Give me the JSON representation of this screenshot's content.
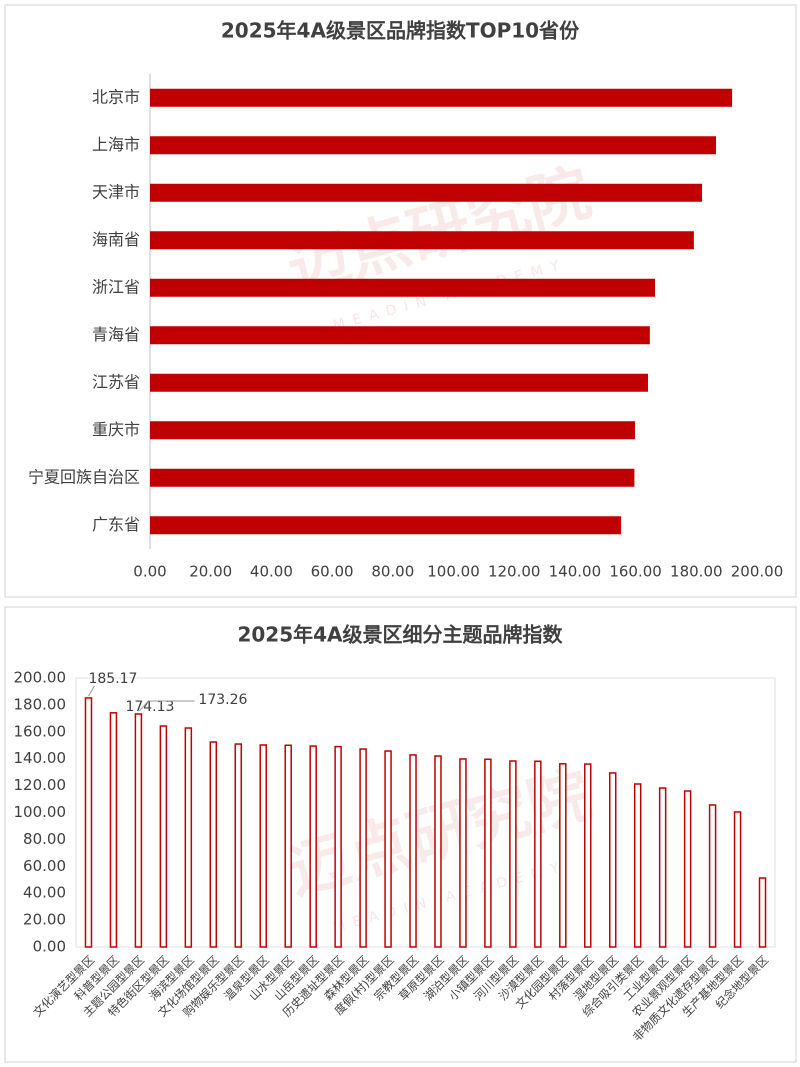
{
  "chart_data": [
    {
      "type": "hbar",
      "title": "2025年4A级景区品牌指数TOP10省份",
      "watermark": "迈点研究院",
      "watermark_sub": "MEADIN ACADEMY",
      "categories": [
        "北京市",
        "上海市",
        "天津市",
        "海南省",
        "浙江省",
        "青海省",
        "江苏省",
        "重庆市",
        "宁夏回族自治区",
        "广东省"
      ],
      "values": [
        191.8,
        186.5,
        181.9,
        179.2,
        166.4,
        164.7,
        164.1,
        159.8,
        159.6,
        155.2
      ],
      "color": "#c00000",
      "xlim": [
        0,
        200
      ],
      "xticks": [
        {
          "value": 0,
          "label": "0.00"
        },
        {
          "value": 20,
          "label": "20.00"
        },
        {
          "value": 40,
          "label": "40.00"
        },
        {
          "value": 60,
          "label": "60.00"
        },
        {
          "value": 80,
          "label": "80.00"
        },
        {
          "value": 100,
          "label": "100.00"
        },
        {
          "value": 120,
          "label": "120.00"
        },
        {
          "value": 140,
          "label": "140.00"
        },
        {
          "value": 160,
          "label": "160.00"
        },
        {
          "value": 180,
          "label": "180.00"
        },
        {
          "value": 200,
          "label": "200.00"
        }
      ]
    },
    {
      "type": "bar",
      "title": "2025年4A级景区细分主题品牌指数",
      "watermark": "迈点研究院",
      "watermark_sub": "MEADIN ACADEMY",
      "categories": [
        "文化演艺型景区",
        "科普型景区",
        "主题公园型景区",
        "特色街区型景区",
        "海滨型景区",
        "文化场馆型景区",
        "购物娱乐型景区",
        "温泉型景区",
        "山水型景区",
        "山岳型景区",
        "历史遗址型景区",
        "森林型景区",
        "度假(村)型景区",
        "宗教型景区",
        "草原型景区",
        "湖泊型景区",
        "小镇型景区",
        "河川型景区",
        "沙漠型景区",
        "文化园型景区",
        "村落型景区",
        "湿地型景区",
        "综合吸引类景区",
        "工业型景区",
        "农业景观型景区",
        "非物质文化遗存型景区",
        "生产基地型景区",
        "纪念地型景区"
      ],
      "values": [
        185.17,
        174.13,
        173.26,
        164.3,
        162.8,
        152.4,
        150.9,
        150.2,
        150.0,
        149.4,
        149.0,
        147.2,
        145.7,
        142.8,
        142.0,
        139.8,
        139.6,
        138.3,
        138.1,
        136.2,
        136.0,
        129.4,
        121.2,
        118.2,
        116.0,
        105.6,
        100.4,
        51.3
      ],
      "value_labels": [
        "185.17",
        "174.13",
        "173.26",
        null,
        null,
        null,
        null,
        null,
        null,
        null,
        null,
        null,
        null,
        null,
        null,
        null,
        null,
        null,
        null,
        null,
        null,
        null,
        null,
        null,
        null,
        null,
        null,
        null
      ],
      "color": "#c00000",
      "ylim": [
        0,
        200
      ],
      "yticks": [
        {
          "value": 0,
          "label": "0.00"
        },
        {
          "value": 20,
          "label": "20.00"
        },
        {
          "value": 40,
          "label": "40.00"
        },
        {
          "value": 60,
          "label": "60.00"
        },
        {
          "value": 80,
          "label": "80.00"
        },
        {
          "value": 100,
          "label": "100.00"
        },
        {
          "value": 120,
          "label": "120.00"
        },
        {
          "value": 140,
          "label": "140.00"
        },
        {
          "value": 160,
          "label": "160.00"
        },
        {
          "value": 180,
          "label": "180.00"
        },
        {
          "value": 200,
          "label": "200.00"
        }
      ]
    }
  ]
}
